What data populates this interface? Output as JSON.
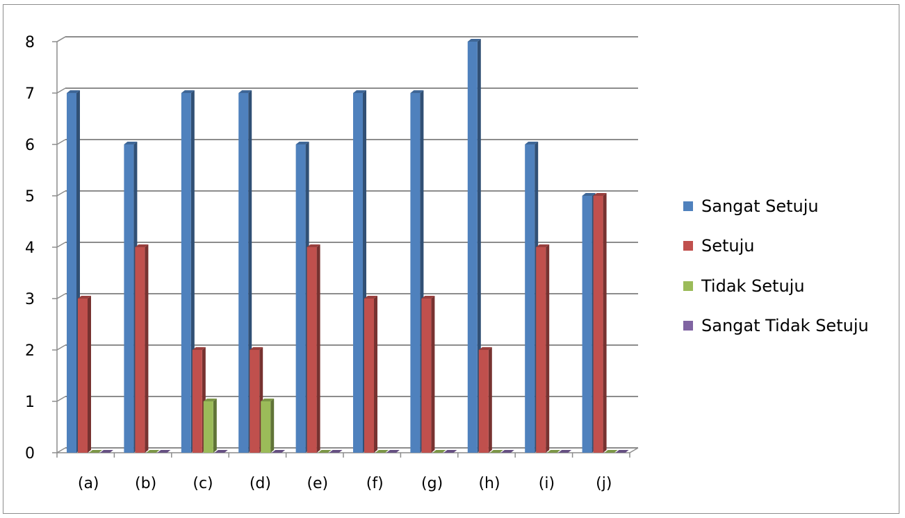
{
  "chart_data": {
    "type": "bar",
    "categories": [
      "(a)",
      "(b)",
      "(c)",
      "(d)",
      "(e)",
      "(f)",
      "(g)",
      "(h)",
      "(i)",
      "(j)"
    ],
    "series": [
      {
        "name": "Sangat Setuju",
        "color": "#4f81bd",
        "values": [
          7,
          6,
          7,
          7,
          6,
          7,
          7,
          8,
          6,
          5
        ]
      },
      {
        "name": "Setuju",
        "color": "#c0504d",
        "values": [
          3,
          4,
          2,
          2,
          4,
          3,
          3,
          2,
          4,
          5
        ]
      },
      {
        "name": "Tidak Setuju",
        "color": "#9bbb59",
        "values": [
          0,
          0,
          1,
          1,
          0,
          0,
          0,
          0,
          0,
          0
        ]
      },
      {
        "name": "Sangat Tidak Setuju",
        "color": "#8064a2",
        "values": [
          0,
          0,
          0,
          0,
          0,
          0,
          0,
          0,
          0,
          0
        ]
      }
    ],
    "y_ticks": [
      "0",
      "1",
      "2",
      "3",
      "4",
      "5",
      "6",
      "7",
      "8"
    ],
    "ylim": [
      0,
      8
    ],
    "grid": true,
    "legend_position": "right",
    "style": "3d-clustered-column"
  }
}
